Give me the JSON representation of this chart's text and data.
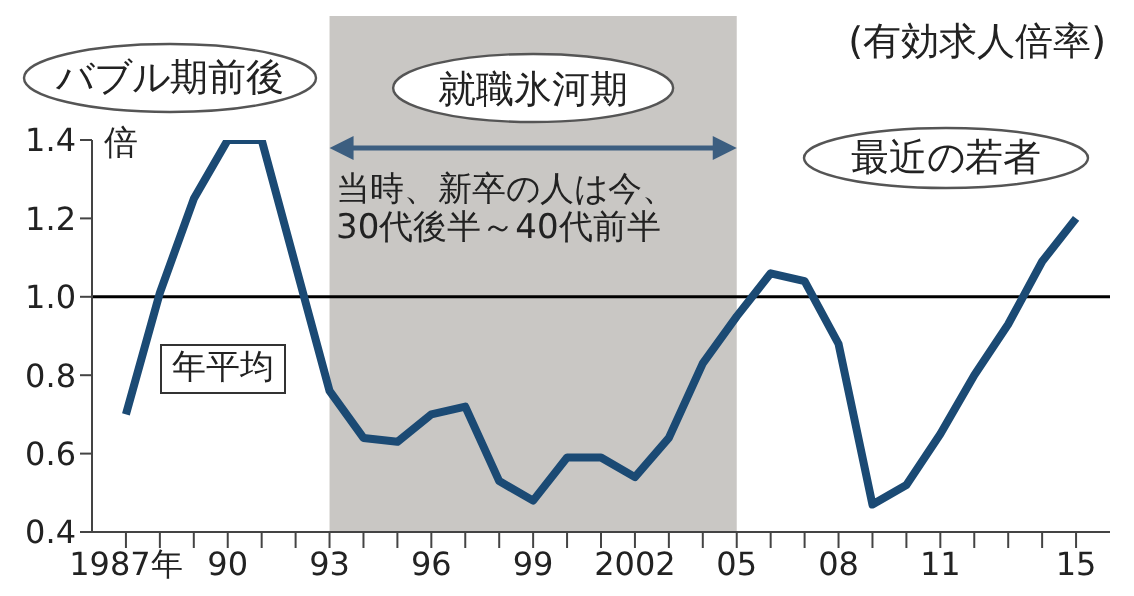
{
  "chart_data": {
    "type": "line",
    "title": "(有効求人倍率)",
    "ylabel": "倍",
    "x": [
      1987,
      1988,
      1989,
      1990,
      1991,
      1992,
      1993,
      1994,
      1995,
      1996,
      1997,
      1998,
      1999,
      2000,
      2001,
      2002,
      2003,
      2004,
      2005,
      2006,
      2007,
      2008,
      2009,
      2010,
      2011,
      2012,
      2013,
      2014,
      2015
    ],
    "series": [
      {
        "color": "#1b4a74",
        "values": [
          0.7,
          1.01,
          1.25,
          1.4,
          1.4,
          1.08,
          0.76,
          0.64,
          0.63,
          0.7,
          0.72,
          0.53,
          0.48,
          0.59,
          0.59,
          0.54,
          0.64,
          0.83,
          0.95,
          1.06,
          1.04,
          0.88,
          0.47,
          0.52,
          0.65,
          0.8,
          0.93,
          1.09,
          1.2
        ]
      }
    ],
    "xlim": [
      1986,
      2016
    ],
    "xticks": [
      {
        "value": 1987,
        "label": "1987年"
      },
      {
        "value": 1988,
        "label": null
      },
      {
        "value": 1989,
        "label": null
      },
      {
        "value": 1990,
        "label": "90"
      },
      {
        "value": 1991,
        "label": null
      },
      {
        "value": 1992,
        "label": null
      },
      {
        "value": 1993,
        "label": "93"
      },
      {
        "value": 1994,
        "label": null
      },
      {
        "value": 1995,
        "label": null
      },
      {
        "value": 1996,
        "label": "96"
      },
      {
        "value": 1997,
        "label": null
      },
      {
        "value": 1998,
        "label": null
      },
      {
        "value": 1999,
        "label": "99"
      },
      {
        "value": 2000,
        "label": null
      },
      {
        "value": 2001,
        "label": null
      },
      {
        "value": 2002,
        "label": "2002"
      },
      {
        "value": 2003,
        "label": null
      },
      {
        "value": 2004,
        "label": null
      },
      {
        "value": 2005,
        "label": "05"
      },
      {
        "value": 2006,
        "label": null
      },
      {
        "value": 2007,
        "label": null
      },
      {
        "value": 2008,
        "label": "08"
      },
      {
        "value": 2009,
        "label": null
      },
      {
        "value": 2010,
        "label": null
      },
      {
        "value": 2011,
        "label": "11"
      },
      {
        "value": 2012,
        "label": null
      },
      {
        "value": 2013,
        "label": null
      },
      {
        "value": 2014,
        "label": null
      },
      {
        "value": 2015,
        "label": "15"
      }
    ],
    "ylim": [
      0.4,
      1.4
    ],
    "yticks": [
      0.4,
      0.6,
      0.8,
      {
        "value": 1.0,
        "label": "1.0"
      },
      1.2,
      1.4
    ],
    "grid": false,
    "legend": false,
    "marker": "none",
    "line_style": "solid",
    "ref_lines": [
      {
        "axis": "y",
        "value": 1.0,
        "color": "#000000"
      }
    ],
    "bands": [
      {
        "axis": "x",
        "from": 1993,
        "to": 2005,
        "label": "就職氷河期",
        "color": "#c9c7c4"
      }
    ],
    "annotations": [
      "バブル期前後",
      "最近の若者",
      "当時、新卒の人は今、\n30代後半～40代前半",
      "年平均"
    ]
  }
}
